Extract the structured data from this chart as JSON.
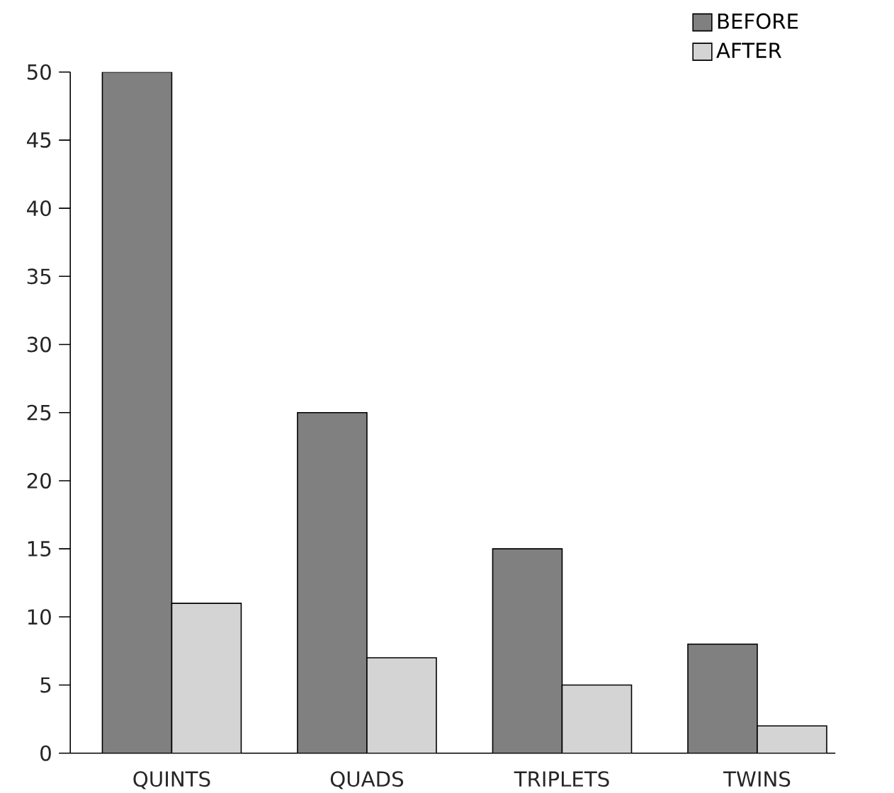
{
  "chart_data": {
    "type": "bar",
    "categories": [
      "QUINTS",
      "QUADS",
      "TRIPLETS",
      "TWINS"
    ],
    "series": [
      {
        "name": "BEFORE",
        "color": "#808080",
        "values": [
          50,
          25,
          15,
          8
        ]
      },
      {
        "name": "AFTER",
        "color": "#d4d4d4",
        "values": [
          11,
          7,
          5,
          2
        ]
      }
    ],
    "ylim": [
      0,
      50
    ],
    "yticks": [
      0,
      5,
      10,
      15,
      20,
      25,
      30,
      35,
      40,
      45,
      50
    ],
    "grid": false,
    "legend": "top right"
  }
}
